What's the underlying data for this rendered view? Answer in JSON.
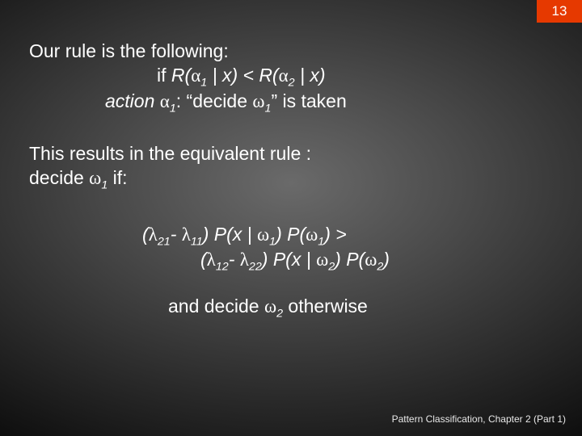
{
  "page_number": "13",
  "line1": "Our rule is the following:",
  "line2_a": "if ",
  "line2_b": "R",
  "line2_c": "(",
  "line2_alpha": "α",
  "line2_sub1": "1",
  "line2_d": " | ",
  "line2_e": "x) < R(",
  "line2_sub2": "2",
  "line2_f": " | x)",
  "line3_a": "action ",
  "line3_sub1": "1",
  "line3_b": ": “decide ",
  "line3_omega": "ω",
  "line3_sub2": "1",
  "line3_c": "” is taken",
  "line4": "This results in the equivalent rule :",
  "line5_a": "decide ",
  "line5_sub": "1",
  "line5_b": " if:",
  "lambda": "λ",
  "line6_a": "(",
  "line6_s1": "21",
  "line6_b": "- ",
  "line6_s2": "11",
  "line6_c": ") P(x | ",
  "line6_s3": "1",
  "line6_d": ") P(",
  "line6_s4": "1",
  "line6_e": ") >",
  "line7_s1": "12",
  "line7_s2": "22",
  "line7_s3": "2",
  "line7_s4": "2",
  "line7_e": ")",
  "line8_a": "and decide ",
  "line8_sub": "2",
  "line8_b": " otherwise",
  "footer": "Pattern Classification, Chapter 2 (Part 1)"
}
